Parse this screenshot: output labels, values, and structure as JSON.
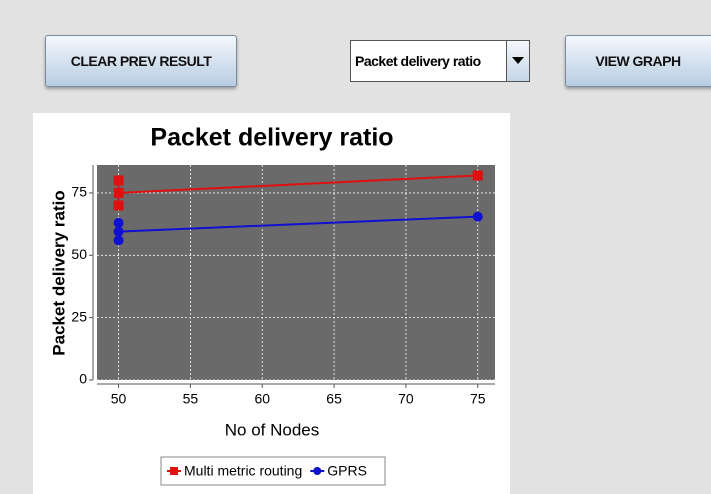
{
  "buttons": {
    "clear": "CLEAR PREV RESULT",
    "view": "VIEW GRAPH"
  },
  "dropdown": {
    "selected": "Packet delivery ratio"
  },
  "chart_data": {
    "type": "line",
    "title": "Packet delivery ratio",
    "x_label": "No of Nodes",
    "y_label": "Packet delivery ratio",
    "series": [
      {
        "name": "Multi metric routing",
        "color": "#e01010",
        "x": [
          50,
          50,
          50,
          75
        ],
        "values": [
          70,
          80,
          75,
          82
        ]
      },
      {
        "name": "GPRS",
        "color": "#1010d0",
        "x": [
          50,
          50,
          50,
          75
        ],
        "values": [
          56,
          63,
          59.5,
          65.5
        ]
      }
    ],
    "xlim": [
      48.5,
      76.2
    ],
    "xticks": [
      50,
      55,
      60,
      65,
      70,
      75
    ],
    "ylim": [
      0,
      86.2
    ],
    "yticks": [
      0,
      25,
      50,
      75
    ],
    "grid": true,
    "legend": "bottom"
  }
}
